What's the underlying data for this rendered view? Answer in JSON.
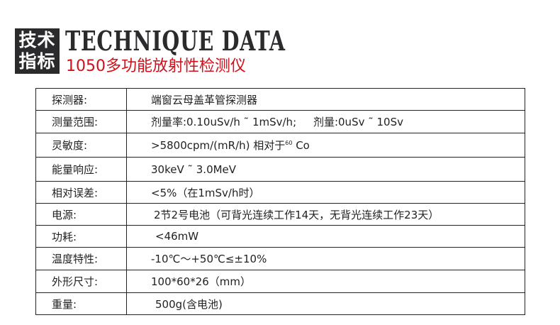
{
  "header": {
    "badge_line1": "技术",
    "badge_line2": "指标",
    "title_en": "TECHNIQUE DATA",
    "subtitle": "1050多功能放射性检测仪",
    "accent_color": "#d0101a"
  },
  "specs": [
    {
      "label": "探测器:",
      "value": "端窗云母盖革管探测器"
    },
    {
      "label": "测量范围:",
      "value": "剂量率:0.10uSv/h ˜ 1mSv/h;     剂量:0uSv ˜ 10Sv"
    },
    {
      "label": "灵敏度:",
      "value_pre": ">5800cpm/(mR/h) 相对于",
      "value_sup": "60",
      "value_post": " Co"
    },
    {
      "label": "能量响应:",
      "value": "30keV ˜ 3.0MeV"
    },
    {
      "label": "相对误差:",
      "value": "<5%（在1mSv/h时）"
    },
    {
      "label": "电源:",
      "value": "2节2号电池（可背光连续工作14天，无背光连续工作23天）"
    },
    {
      "label": "功耗:",
      "value": "<46mW"
    },
    {
      "label": "温度特性:",
      "value": "-10℃～+50℃≤±10%"
    },
    {
      "label": "外形尺寸:",
      "value": "100*60*26（mm）"
    },
    {
      "label": "重量:",
      "value": "500g(含电池)"
    }
  ]
}
